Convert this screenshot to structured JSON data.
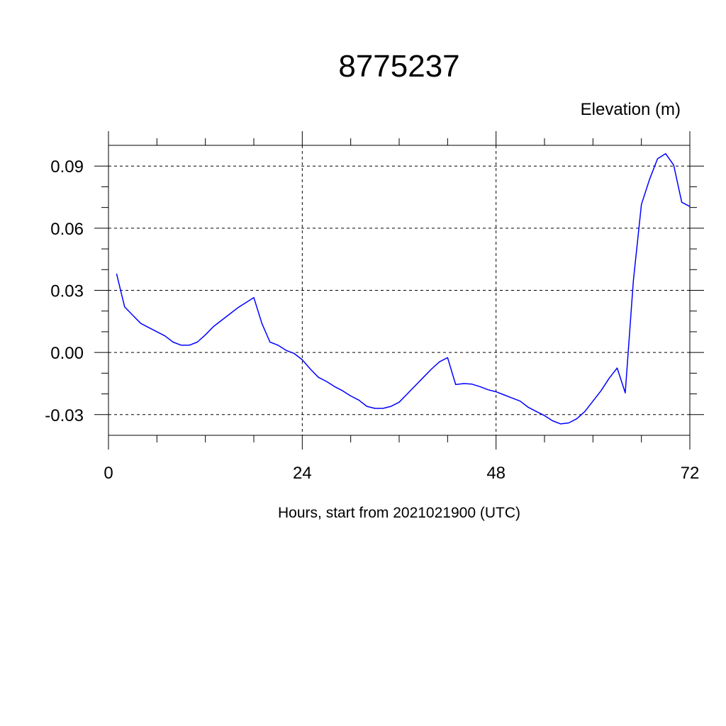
{
  "chart_data": {
    "type": "line",
    "title": "8775237",
    "ylabel": "Elevation (m)",
    "xlabel": "Hours, start from 2021021900 (UTC)",
    "xlim": [
      0,
      72
    ],
    "ylim": [
      -0.04,
      0.1
    ],
    "xticks": [
      0,
      24,
      48,
      72
    ],
    "xtick_labels": [
      "0",
      "24",
      "48",
      "72"
    ],
    "xminor_step": 6,
    "yticks": [
      -0.03,
      0.0,
      0.03,
      0.06,
      0.09
    ],
    "ytick_labels": [
      "-0.03",
      "0.00",
      "0.03",
      "0.06",
      "0.09"
    ],
    "yminor_step": 0.01,
    "grid": true,
    "line_color": "#0000ff",
    "series": [
      {
        "x": [
          1,
          2,
          3,
          4,
          5,
          6,
          7,
          8,
          9,
          10,
          11,
          12,
          13,
          14,
          15,
          16,
          17,
          18,
          19,
          20,
          21,
          22,
          23,
          24,
          25,
          26,
          27,
          28,
          29,
          30,
          31,
          32,
          33,
          34,
          35,
          36,
          37,
          38,
          39,
          40,
          41,
          42,
          43,
          44,
          45,
          46,
          47,
          48,
          49,
          50,
          51,
          52,
          53,
          54,
          55,
          56,
          57,
          58,
          59,
          60,
          61,
          62,
          63,
          64,
          65,
          66,
          67,
          68,
          69,
          70,
          71,
          72
        ],
        "values": [
          0.038,
          0.022,
          0.018,
          0.014,
          0.012,
          0.01,
          0.008,
          0.005,
          0.0035,
          0.0035,
          0.005,
          0.0085,
          0.0125,
          0.0155,
          0.0185,
          0.0215,
          0.024,
          0.0265,
          0.014,
          0.005,
          0.0035,
          0.001,
          -0.0005,
          -0.0035,
          -0.008,
          -0.012,
          -0.014,
          -0.0165,
          -0.0185,
          -0.021,
          -0.023,
          -0.026,
          -0.027,
          -0.027,
          -0.026,
          -0.024,
          -0.02,
          -0.016,
          -0.012,
          -0.008,
          -0.0045,
          -0.0025,
          -0.0155,
          -0.015,
          -0.0153,
          -0.0165,
          -0.018,
          -0.019,
          -0.0205,
          -0.022,
          -0.0235,
          -0.0265,
          -0.0285,
          -0.0305,
          -0.033,
          -0.0345,
          -0.034,
          -0.032,
          -0.0285,
          -0.0235,
          -0.0185,
          -0.0125,
          -0.0075,
          -0.0195,
          0.0345,
          0.0715,
          0.0835,
          0.0935,
          0.096,
          0.0905,
          0.0725,
          0.0705
        ]
      }
    ]
  }
}
